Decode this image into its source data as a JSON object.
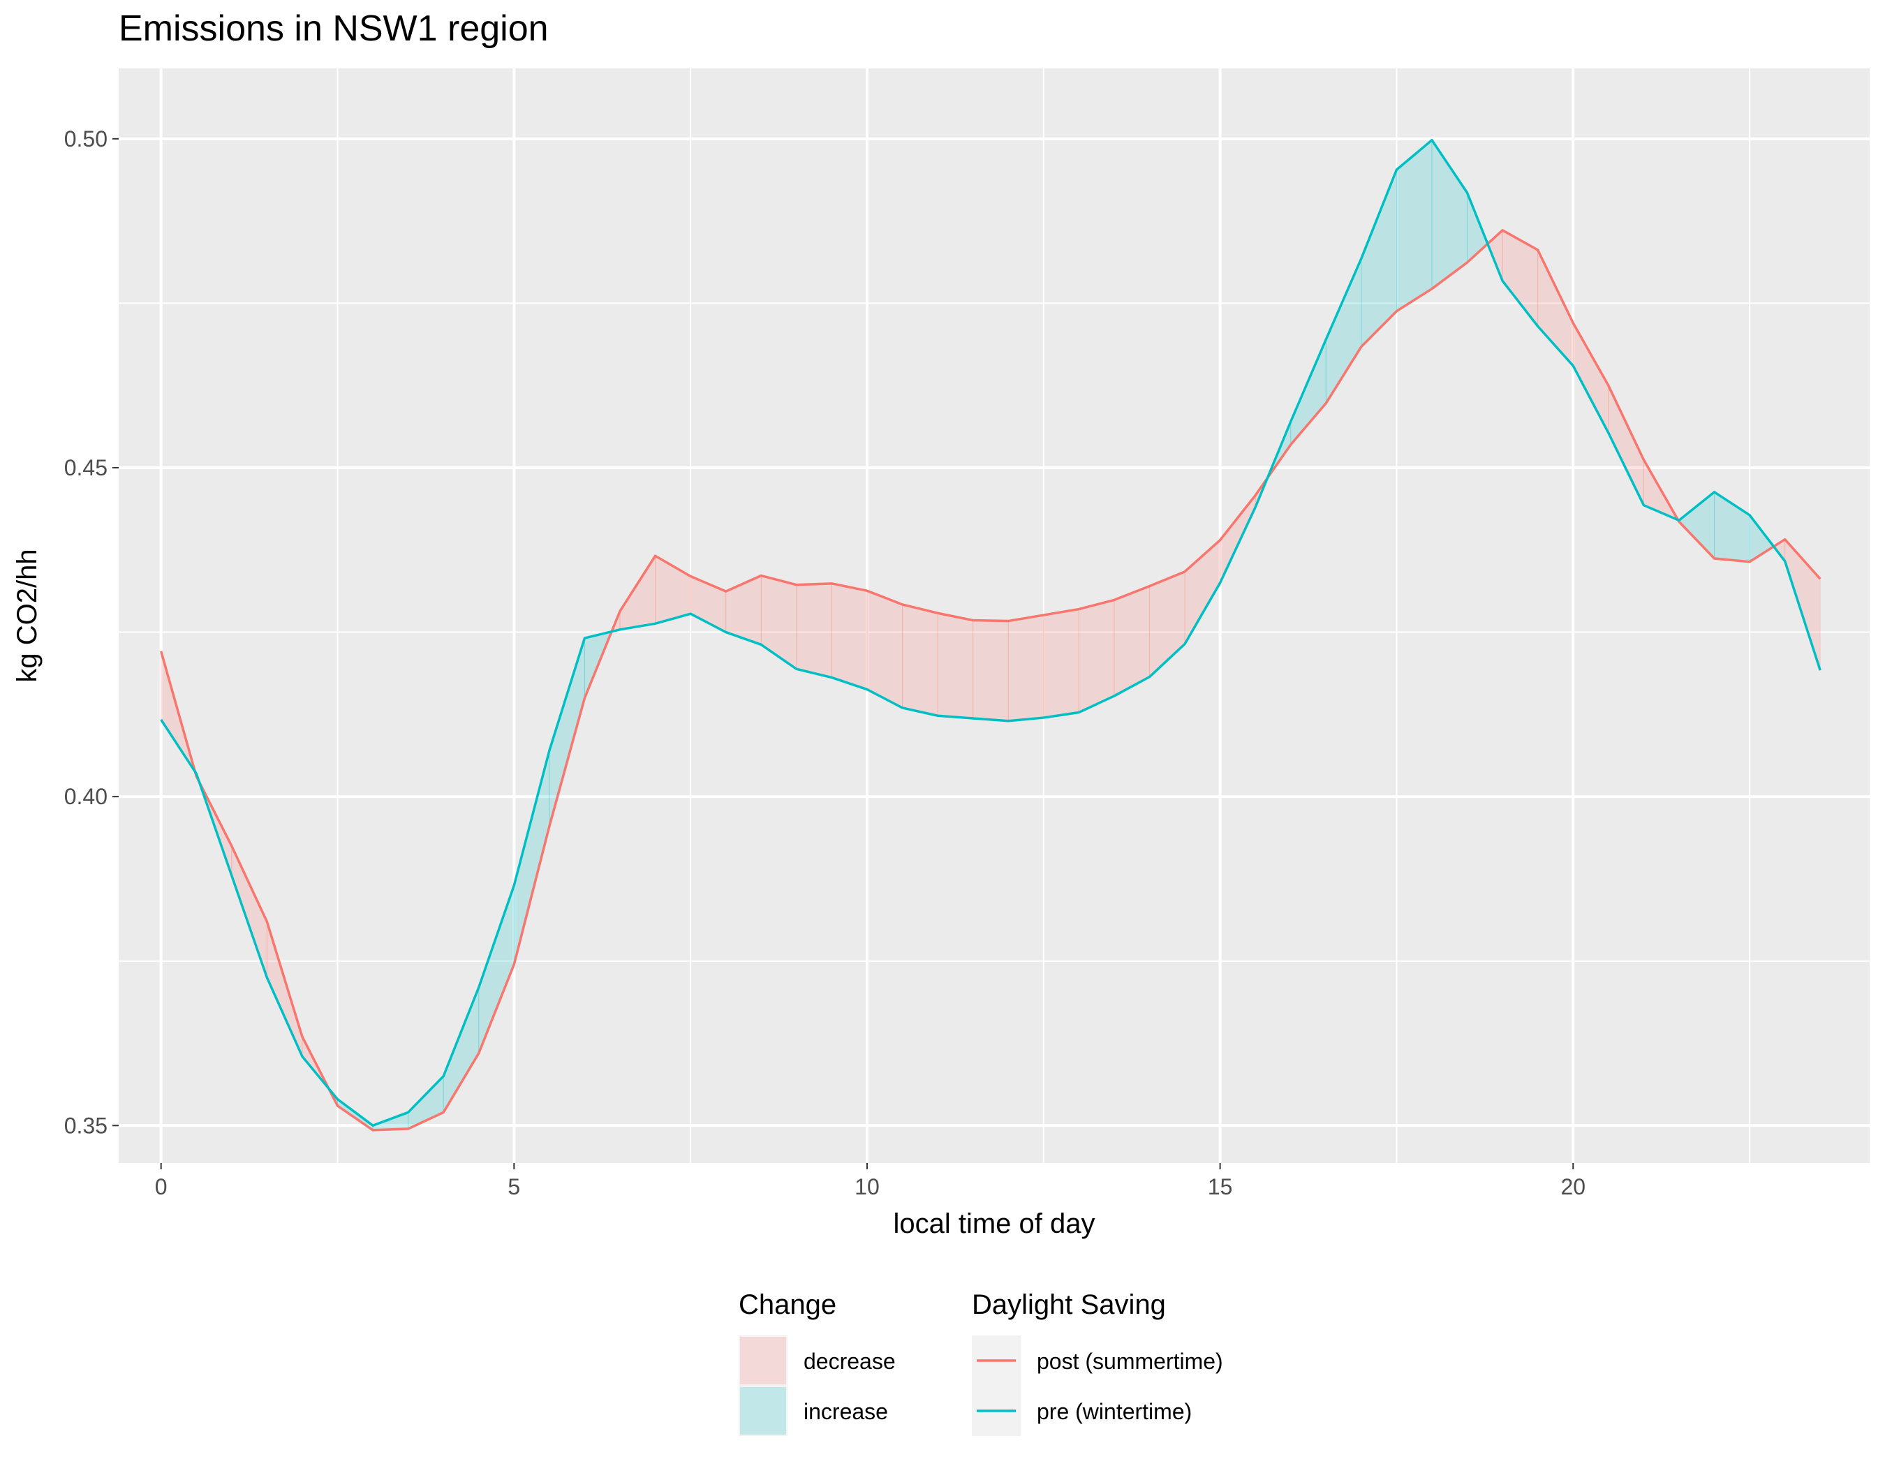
{
  "chart_data": {
    "type": "line",
    "title": "Emissions in NSW1 region",
    "xlabel": "local time of day",
    "ylabel": "kg CO2/hh",
    "xlim": [
      -0.6,
      24.2
    ],
    "ylim": [
      0.3443,
      0.5107
    ],
    "x_ticks": [
      0,
      5,
      10,
      15,
      20
    ],
    "x_tick_labels": [
      "0",
      "5",
      "10",
      "15",
      "20"
    ],
    "y_ticks": [
      0.35,
      0.4,
      0.45,
      0.5
    ],
    "y_tick_labels": [
      "0.35",
      "0.40",
      "0.45",
      "0.50"
    ],
    "grid": true,
    "x": [
      0,
      0.5,
      1,
      1.5,
      2,
      2.5,
      3,
      3.5,
      4,
      4.5,
      5,
      5.5,
      6,
      6.5,
      7,
      7.5,
      8,
      8.5,
      9,
      9.5,
      10,
      10.5,
      11,
      11.5,
      12,
      12.5,
      13,
      13.5,
      14,
      14.5,
      15,
      15.5,
      16,
      16.5,
      17,
      17.5,
      18,
      18.5,
      19,
      19.5,
      20,
      20.5,
      21,
      21.5,
      22,
      22.5,
      23,
      23.5
    ],
    "series": [
      {
        "name": "post (summertime)",
        "color": "#F8766D",
        "values": [
          0.4221,
          0.4031,
          0.3925,
          0.381,
          0.3635,
          0.353,
          0.3493,
          0.3495,
          0.352,
          0.361,
          0.3745,
          0.3955,
          0.415,
          0.4282,
          0.4366,
          0.4335,
          0.4312,
          0.4336,
          0.4322,
          0.4324,
          0.4313,
          0.4292,
          0.4279,
          0.4268,
          0.4267,
          0.4276,
          0.4285,
          0.4299,
          0.432,
          0.4342,
          0.439,
          0.4458,
          0.4535,
          0.4598,
          0.4684,
          0.4738,
          0.4772,
          0.4812,
          0.4861,
          0.4831,
          0.472,
          0.4625,
          0.4512,
          0.4418,
          0.4362,
          0.4357,
          0.4391,
          0.4331
        ]
      },
      {
        "name": "pre (wintertime)",
        "color": "#00BFC4",
        "values": [
          0.4117,
          0.4035,
          0.388,
          0.3725,
          0.3605,
          0.354,
          0.35,
          0.352,
          0.3575,
          0.371,
          0.3865,
          0.407,
          0.4241,
          0.4254,
          0.4263,
          0.4278,
          0.425,
          0.4231,
          0.4194,
          0.4181,
          0.4163,
          0.4135,
          0.4123,
          0.4119,
          0.4115,
          0.412,
          0.4128,
          0.4153,
          0.4182,
          0.4232,
          0.4325,
          0.444,
          0.457,
          0.4695,
          0.4818,
          0.4953,
          0.4998,
          0.4918,
          0.4784,
          0.4715,
          0.4655,
          0.4553,
          0.4443,
          0.442,
          0.4463,
          0.4428,
          0.4358,
          0.4192
        ]
      }
    ],
    "ribbon": {
      "legend_title": "Change",
      "decrease": {
        "label": "decrease",
        "color": "#F8766D"
      },
      "increase": {
        "label": "increase",
        "color": "#00BFC4"
      }
    },
    "line_legend_title": "Daylight Saving",
    "legend_position": "bottom"
  }
}
